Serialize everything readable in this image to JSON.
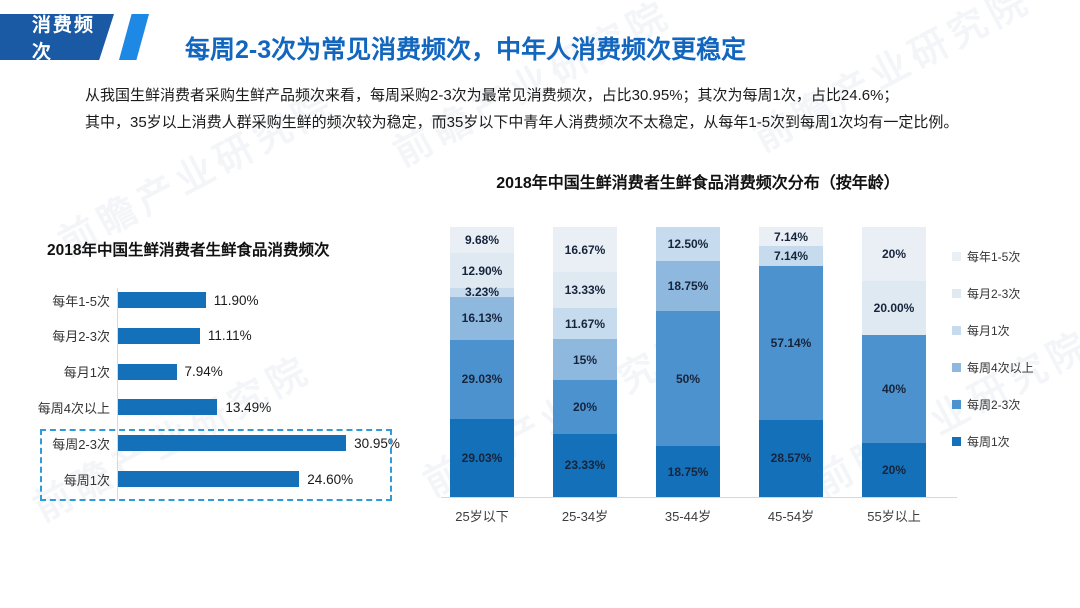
{
  "header": {
    "badge_label": "消费频次",
    "badge_bg": "#1A5AA5",
    "accent_color": "#1E88E5",
    "title": "每周2-3次为常见消费频次，中年人消费频次更稳定",
    "title_color": "#1266BE"
  },
  "intro": {
    "line1": "从我国生鲜消费者采购生鲜产品频次来看，每周采购2-3次为最常见消费频次，占比30.95%；其次为每周1次，占比24.6%；",
    "line2": "其中，35岁以上消费人群采购生鲜的频次较为稳定，而35岁以下中青年人消费频次不太稳定，从每年1-5次到每周1次均有一定比例。"
  },
  "watermark": {
    "text": "前瞻产业研究院"
  },
  "chart_data": [
    {
      "type": "bar",
      "orientation": "horizontal",
      "title": "2018年中国生鲜消费者生鲜食品消费频次",
      "categories": [
        "每年1-5次",
        "每月2-3次",
        "每月1次",
        "每周4次以上",
        "每周2-3次",
        "每周1次"
      ],
      "values": [
        11.9,
        11.11,
        7.94,
        13.49,
        30.95,
        24.6
      ],
      "value_labels": [
        "11.90%",
        "11.11%",
        "7.94%",
        "13.49%",
        "30.95%",
        "24.60%"
      ],
      "bar_color": "#1470B8",
      "xlim": [
        0,
        35
      ],
      "grid": false,
      "highlight": {
        "categories": [
          "每周2-3次",
          "每周1次"
        ],
        "style": "dashed-box",
        "color": "#2F9BD9"
      }
    },
    {
      "type": "bar",
      "subtype": "stacked-100",
      "title": "2018年中国生鲜消费者生鲜食品消费频次分布（按年龄）",
      "categories": [
        "25岁以下",
        "25-34岁",
        "35-44岁",
        "45-54岁",
        "55岁以上"
      ],
      "ylim": [
        0,
        100
      ],
      "legend_position": "right",
      "series": [
        {
          "name": "每年1-5次",
          "color": "#E9EFF5",
          "values": [
            9.68,
            16.67,
            0,
            7.14,
            20
          ],
          "labels": [
            "9.68%",
            "16.67%",
            "",
            "7.14%",
            "20%"
          ]
        },
        {
          "name": "每月2-3次",
          "color": "#DFE9F2",
          "values": [
            12.9,
            13.33,
            0,
            0,
            20
          ],
          "labels": [
            "12.90%",
            "13.33%",
            "",
            "",
            "20.00%"
          ]
        },
        {
          "name": "每月1次",
          "color": "#C6DBEE",
          "values": [
            3.23,
            11.67,
            12.5,
            7.14,
            0
          ],
          "labels": [
            "3.23%",
            "11.67%",
            "12.50%",
            "7.14%",
            ""
          ]
        },
        {
          "name": "每周4次以上",
          "color": "#8FB8DE",
          "values": [
            16.13,
            15,
            18.75,
            0,
            0
          ],
          "labels": [
            "16.13%",
            "15%",
            "18.75%",
            "",
            ""
          ]
        },
        {
          "name": "每周2-3次",
          "color": "#4C92CE",
          "values": [
            29.03,
            20,
            50,
            57.14,
            40
          ],
          "labels": [
            "29.03%",
            "20%",
            "50%",
            "57.14%",
            "40%"
          ]
        },
        {
          "name": "每周1次",
          "color": "#1470B8",
          "values": [
            29.03,
            23.33,
            18.75,
            28.57,
            20
          ],
          "labels": [
            "29.03%",
            "23.33%",
            "18.75%",
            "28.57%",
            "20%"
          ]
        }
      ]
    }
  ]
}
